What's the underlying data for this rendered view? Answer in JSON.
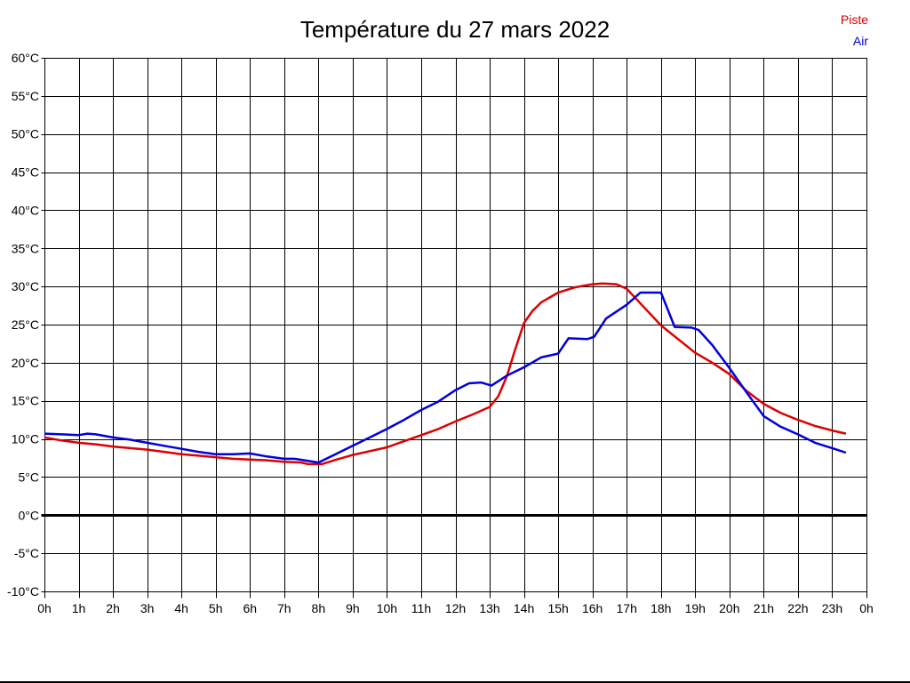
{
  "chart_data": {
    "type": "line",
    "title": "Température du 27 mars 2022",
    "x_axis": {
      "range": [
        0,
        24
      ],
      "tick_step_hours": 1,
      "tick_labels": [
        "0h",
        "1h",
        "2h",
        "3h",
        "4h",
        "5h",
        "6h",
        "7h",
        "8h",
        "9h",
        "10h",
        "11h",
        "12h",
        "13h",
        "14h",
        "15h",
        "16h",
        "17h",
        "18h",
        "19h",
        "20h",
        "21h",
        "22h",
        "23h",
        "0h"
      ]
    },
    "y_axis": {
      "range": [
        -10,
        60
      ],
      "tick_step_degrees": 5,
      "tick_values": [
        60,
        55,
        50,
        45,
        40,
        35,
        30,
        25,
        20,
        15,
        10,
        5,
        0,
        -5,
        -10
      ],
      "tick_labels": [
        "60°C",
        "55°C",
        "50°C",
        "45°C",
        "40°C",
        "35°C",
        "30°C",
        "25°C",
        "20°C",
        "15°C",
        "10°C",
        "5°C",
        "0°C",
        "-5°C",
        "-10°C"
      ],
      "zero_line_bold": true
    },
    "grid": true,
    "legend_position": "top-right",
    "legend": [
      {
        "label": "Piste",
        "color": "#dd0000"
      },
      {
        "label": "Air",
        "color": "#0000dd"
      }
    ],
    "series": [
      {
        "name": "Piste",
        "color": "#dd0000",
        "points": [
          [
            0,
            10.2
          ],
          [
            0.5,
            9.8
          ],
          [
            1,
            9.5
          ],
          [
            1.5,
            9.3
          ],
          [
            2,
            9.0
          ],
          [
            2.5,
            8.8
          ],
          [
            3,
            8.6
          ],
          [
            3.5,
            8.3
          ],
          [
            4,
            8.0
          ],
          [
            4.5,
            7.8
          ],
          [
            5,
            7.6
          ],
          [
            5.5,
            7.4
          ],
          [
            6,
            7.3
          ],
          [
            6.5,
            7.2
          ],
          [
            7,
            7.0
          ],
          [
            7.5,
            6.9
          ],
          [
            7.7,
            6.7
          ],
          [
            8.1,
            6.7
          ],
          [
            8.5,
            7.25
          ],
          [
            9,
            7.9
          ],
          [
            9.5,
            8.4
          ],
          [
            10,
            8.9
          ],
          [
            10.5,
            9.7
          ],
          [
            11,
            10.5
          ],
          [
            11.5,
            11.3
          ],
          [
            12,
            12.3
          ],
          [
            12.5,
            13.2
          ],
          [
            13,
            14.2
          ],
          [
            13.25,
            15.6
          ],
          [
            13.5,
            18.2
          ],
          [
            13.75,
            21.8
          ],
          [
            14,
            25.2
          ],
          [
            14.25,
            26.8
          ],
          [
            14.5,
            27.9
          ],
          [
            15,
            29.2
          ],
          [
            15.5,
            29.9
          ],
          [
            16,
            30.3
          ],
          [
            16.3,
            30.4
          ],
          [
            16.7,
            30.3
          ],
          [
            17,
            29.7
          ],
          [
            17.5,
            27.3
          ],
          [
            18,
            24.9
          ],
          [
            18.5,
            23.1
          ],
          [
            19,
            21.3
          ],
          [
            19.5,
            20.0
          ],
          [
            20,
            18.5
          ],
          [
            20.5,
            16.3
          ],
          [
            21,
            14.6
          ],
          [
            21.5,
            13.4
          ],
          [
            22,
            12.5
          ],
          [
            22.5,
            11.7
          ],
          [
            23,
            11.1
          ],
          [
            23.4,
            10.7
          ]
        ]
      },
      {
        "name": "Air",
        "color": "#0000dd",
        "points": [
          [
            0,
            10.7
          ],
          [
            0.5,
            10.6
          ],
          [
            1,
            10.5
          ],
          [
            1.25,
            10.7
          ],
          [
            1.5,
            10.6
          ],
          [
            2,
            10.2
          ],
          [
            2.5,
            9.9
          ],
          [
            3,
            9.5
          ],
          [
            3.5,
            9.1
          ],
          [
            4,
            8.7
          ],
          [
            4.5,
            8.3
          ],
          [
            5,
            8.0
          ],
          [
            5.5,
            8.0
          ],
          [
            6,
            8.1
          ],
          [
            6.5,
            7.7
          ],
          [
            7,
            7.4
          ],
          [
            7.3,
            7.4
          ],
          [
            7.6,
            7.2
          ],
          [
            8,
            6.9
          ],
          [
            8.5,
            8.0
          ],
          [
            9,
            9.1
          ],
          [
            9.5,
            10.2
          ],
          [
            10,
            11.3
          ],
          [
            10.5,
            12.5
          ],
          [
            11,
            13.8
          ],
          [
            11.5,
            14.9
          ],
          [
            12,
            16.4
          ],
          [
            12.4,
            17.3
          ],
          [
            12.75,
            17.4
          ],
          [
            13.05,
            17.0
          ],
          [
            13.5,
            18.3
          ],
          [
            14,
            19.4
          ],
          [
            14.5,
            20.7
          ],
          [
            15,
            21.2
          ],
          [
            15.3,
            23.2
          ],
          [
            15.85,
            23.1
          ],
          [
            16.05,
            23.4
          ],
          [
            16.4,
            25.8
          ],
          [
            17,
            27.6
          ],
          [
            17.4,
            29.2
          ],
          [
            18,
            29.2
          ],
          [
            18.4,
            24.7
          ],
          [
            18.9,
            24.6
          ],
          [
            19.1,
            24.3
          ],
          [
            19.5,
            22.3
          ],
          [
            20,
            19.3
          ],
          [
            20.5,
            16.1
          ],
          [
            21,
            13.0
          ],
          [
            21.5,
            11.6
          ],
          [
            22,
            10.6
          ],
          [
            22.5,
            9.5
          ],
          [
            23,
            8.8
          ],
          [
            23.4,
            8.2
          ]
        ]
      }
    ]
  }
}
